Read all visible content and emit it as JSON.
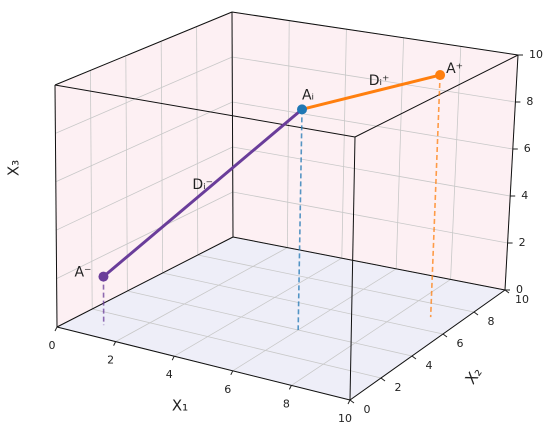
{
  "chart_data": {
    "type": "scatter3d",
    "x_label": "X₁",
    "y_label": "X₂",
    "z_label": "X₃",
    "xlim": [
      0,
      10
    ],
    "ylim": [
      0,
      10
    ],
    "zlim": [
      0,
      10
    ],
    "xticks": [
      0,
      2,
      4,
      6,
      8,
      10
    ],
    "yticks": [
      0,
      2,
      4,
      6,
      8,
      10
    ],
    "zticks": [
      0,
      2,
      4,
      6,
      8,
      10
    ],
    "grid": true,
    "points": [
      {
        "name": "A⁻",
        "color": "#6a3d9a",
        "x": 1,
        "y": 1,
        "z": 2
      },
      {
        "name": "Aᵢ",
        "color": "#1f77b4",
        "x": 6,
        "y": 4,
        "z": 9
      },
      {
        "name": "A⁺",
        "color": "#ff7f0e",
        "x": 9,
        "y": 7,
        "z": 10
      }
    ],
    "segments": [
      {
        "name": "Dᵢ⁻",
        "color": "#6a3d9a",
        "label_color": "#1f6f68"
      },
      {
        "name": "Dᵢ⁺",
        "color": "#ff7f0e",
        "label_color": "#1f6f68"
      }
    ]
  }
}
